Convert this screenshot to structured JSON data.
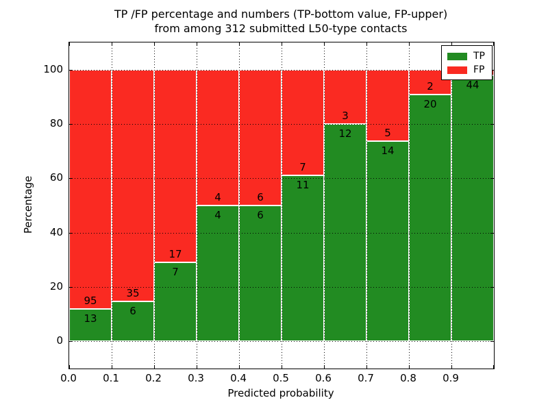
{
  "figure": {
    "title_line1": "TP /FP percentage and numbers (TP-bottom value, FP-upper)",
    "title_line2": "from among 312 submitted L50-type contacts",
    "background": "#ffffff"
  },
  "chart_data": {
    "type": "bar",
    "variant": "stacked-100-percent-histogram",
    "title": "TP /FP percentage and numbers (TP-bottom value, FP-upper) from among 312 submitted L50-type contacts",
    "xlabel": "Predicted probability",
    "ylabel": "Percentage",
    "xlim": [
      0.0,
      1.0
    ],
    "ylim": [
      -10,
      110
    ],
    "bar_width": 0.1,
    "grid": {
      "style": "dotted",
      "color": "#000000",
      "on": true
    },
    "x_tick_labels": [
      "0.0",
      "0.1",
      "0.2",
      "0.3",
      "0.4",
      "0.5",
      "0.6",
      "0.7",
      "0.8",
      "0.9"
    ],
    "y_tick_values": [
      0,
      20,
      40,
      60,
      80,
      100
    ],
    "y_tick_labels": [
      "0",
      "20",
      "40",
      "60",
      "80",
      "100"
    ],
    "bins": [
      "0.0-0.1",
      "0.1-0.2",
      "0.2-0.3",
      "0.3-0.4",
      "0.4-0.5",
      "0.5-0.6",
      "0.6-0.7",
      "0.7-0.8",
      "0.8-0.9",
      "0.9-1.0"
    ],
    "series": [
      {
        "name": "TP",
        "color": "#228b22",
        "position": "bottom",
        "counts": [
          13,
          6,
          7,
          4,
          6,
          11,
          12,
          14,
          20,
          44
        ]
      },
      {
        "name": "FP",
        "color": "#fa2a22",
        "position": "top",
        "counts": [
          95,
          35,
          17,
          4,
          6,
          7,
          3,
          5,
          2,
          1
        ]
      }
    ],
    "tp_percent_of_bin": [
      12.0,
      14.6,
      29.2,
      50.0,
      50.0,
      61.1,
      80.0,
      73.7,
      90.9,
      97.8
    ],
    "bar_value_labels": {
      "tp": [
        "13",
        "6",
        "7",
        "4",
        "6",
        "11",
        "12",
        "14",
        "20",
        "44"
      ],
      "fp": [
        "95",
        "35",
        "17",
        "4",
        "6",
        "7",
        "3",
        "5",
        "2",
        ""
      ]
    },
    "legend": {
      "position": "upper right",
      "entries": [
        {
          "label": "TP",
          "color": "#228b22"
        },
        {
          "label": "FP",
          "color": "#fa2a22"
        }
      ]
    }
  }
}
